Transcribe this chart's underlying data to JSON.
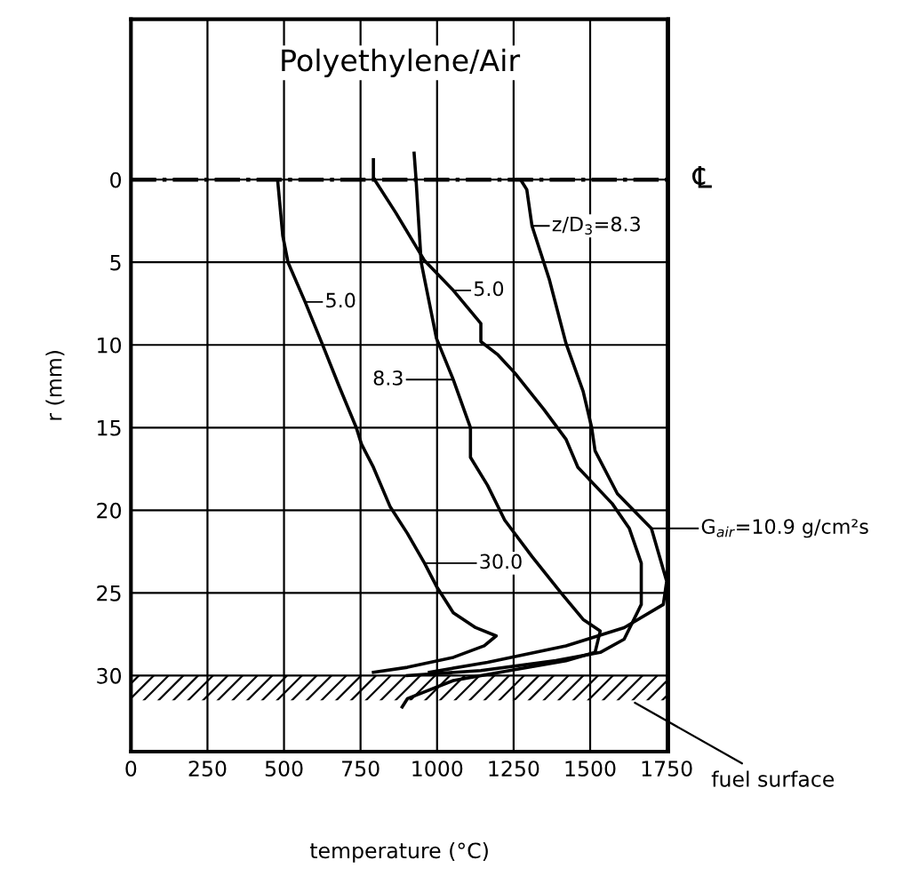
{
  "chart_data": {
    "type": "line",
    "title": "Polyethylene/Air",
    "xlabel": "temperature (°C)",
    "ylabel": "r (mm)",
    "xlim": [
      0,
      1755
    ],
    "xticks": [
      0,
      250,
      500,
      750,
      1000,
      1250,
      1500,
      1750
    ],
    "ylim": [
      34.6,
      -9.7
    ],
    "yticks": [
      0,
      5,
      10,
      15,
      20,
      25,
      30
    ],
    "grid": true,
    "line_style": "solid",
    "marker": "none",
    "series": [
      {
        "color": "#000000",
        "x": [
          479,
          496,
          513,
          569,
          624,
          680,
          736,
          753,
          792,
          847,
          903,
          959,
          998,
          1053,
          1126,
          1193,
          1154,
          1053,
          903,
          792
        ],
        "values": [
          0,
          3.4,
          5,
          7.4,
          9.9,
          12.5,
          15,
          16,
          17.4,
          19.8,
          21.4,
          23.2,
          24.6,
          26.2,
          27.1,
          27.6,
          28.2,
          28.9,
          29.5,
          29.8
        ]
      },
      {
        "color": "#000000",
        "x": [
          792,
          792,
          865,
          959,
          1053,
          1143,
          1143,
          1199,
          1254,
          1349,
          1421,
          1460,
          1572,
          1628,
          1667,
          1667,
          1611,
          1533,
          1388,
          1143,
          903
        ],
        "values": [
          -1.2,
          -0.1,
          2,
          4.9,
          6.7,
          8.7,
          9.8,
          10.6,
          11.7,
          13.9,
          15.7,
          17.4,
          19.6,
          21.1,
          23.2,
          25.7,
          27.8,
          28.6,
          29.1,
          29.7,
          30
        ]
      },
      {
        "color": "#000000",
        "x": [
          925,
          931,
          948,
          998,
          1053,
          1109,
          1109,
          1165,
          1221,
          1310,
          1405,
          1477,
          1533,
          1516,
          1421,
          1237,
          1053,
          903,
          886
        ],
        "values": [
          -1.6,
          -0.1,
          5,
          9.6,
          12.1,
          15,
          16.8,
          18.5,
          20.6,
          22.8,
          25,
          26.6,
          27.3,
          28.6,
          29.1,
          29.7,
          30.3,
          31.4,
          31.9
        ]
      },
      {
        "color": "#000000",
        "x": [
          1276,
          1293,
          1310,
          1366,
          1421,
          1477,
          1505,
          1516,
          1589,
          1700,
          1750,
          1739,
          1611,
          1421,
          1165,
          975
        ],
        "values": [
          0.1,
          0.6,
          2.8,
          6,
          9.9,
          12.8,
          15,
          16.4,
          19,
          21.1,
          24.3,
          25.7,
          27.1,
          28.2,
          29.2,
          29.8
        ]
      }
    ],
    "ref_lines": [
      {
        "axis": "y",
        "value": 0,
        "label": "℄",
        "color": "#000000",
        "line_style": "dashdot"
      }
    ],
    "bands": [
      {
        "axis": "y",
        "from": 30,
        "to": 31.5,
        "label": "fuel surface"
      }
    ],
    "annotations": [
      {
        "text": "5.0",
        "x": 569,
        "y": 7.4
      },
      {
        "text": "5.0",
        "x": 1053,
        "y": 6.7
      },
      {
        "text": "8.3",
        "x": 1053,
        "y": 12.1
      },
      {
        "text": "z/D$_{3}$=8.3",
        "x": 1310,
        "y": 2.8
      },
      {
        "text": "30.0",
        "x": 959,
        "y": 23.2
      },
      {
        "text": "G$_{air}$=10.9 g/cm²s",
        "x": 1700,
        "y": 21.1
      }
    ]
  }
}
